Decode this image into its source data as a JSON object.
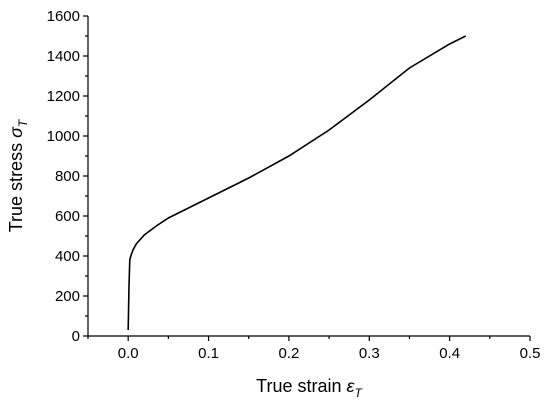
{
  "chart_data": {
    "type": "line",
    "xlabel": "True strain",
    "xlabel_symbol": "ε",
    "xlabel_subscript": "T",
    "ylabel": "True stress",
    "ylabel_symbol": "σ",
    "ylabel_subscript": "T",
    "x": [
      0,
      0.001,
      0.002,
      0.004,
      0.006,
      0.01,
      0.02,
      0.035,
      0.05,
      0.075,
      0.1,
      0.15,
      0.2,
      0.25,
      0.3,
      0.35,
      0.4,
      0.42
    ],
    "series": [
      {
        "color": "#000000",
        "values": [
          30,
          250,
          380,
          410,
          430,
          460,
          505,
          550,
          590,
          640,
          690,
          790,
          900,
          1030,
          1180,
          1340,
          1460,
          1500
        ]
      }
    ],
    "xlim": [
      -0.05,
      0.5
    ],
    "xticks": [
      {
        "value": 0,
        "label": "0.0"
      },
      0.1,
      0.2,
      0.3,
      0.4,
      0.5
    ],
    "ylim": [
      0,
      1600
    ],
    "yticks": [
      0,
      200,
      400,
      600,
      800,
      1000,
      1200,
      1400,
      1600
    ],
    "grid": false
  }
}
